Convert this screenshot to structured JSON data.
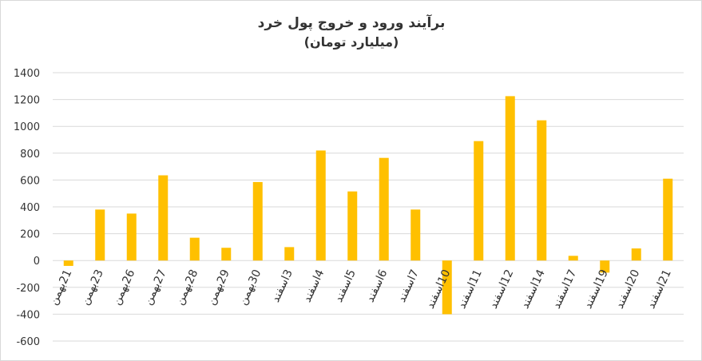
{
  "chart_data": {
    "type": "bar",
    "title": "برآیند ورود و خروج پول خرد",
    "subtitle": "(میلیارد تومان)",
    "categories": [
      "21بهمن",
      "23بهمن",
      "26بهمن",
      "27بهمن",
      "28بهمن",
      "29بهمن",
      "30بهمن",
      "3اسفند",
      "4اسفند",
      "5اسفند",
      "6اسفند",
      "7اسفند",
      "10اسفند",
      "11اسفند",
      "12اسفند",
      "14اسفند",
      "17اسفند",
      "19اسفند",
      "20اسفند",
      "21اسفند"
    ],
    "values": [
      -40,
      380,
      350,
      635,
      170,
      95,
      585,
      100,
      820,
      515,
      765,
      380,
      -400,
      890,
      1225,
      1045,
      35,
      -90,
      90,
      610
    ],
    "color": "#ffc000",
    "ylim": [
      -600,
      1400
    ],
    "yticks": [
      -600,
      -400,
      -200,
      0,
      200,
      400,
      600,
      800,
      1000,
      1200,
      1400
    ],
    "grid": true
  }
}
